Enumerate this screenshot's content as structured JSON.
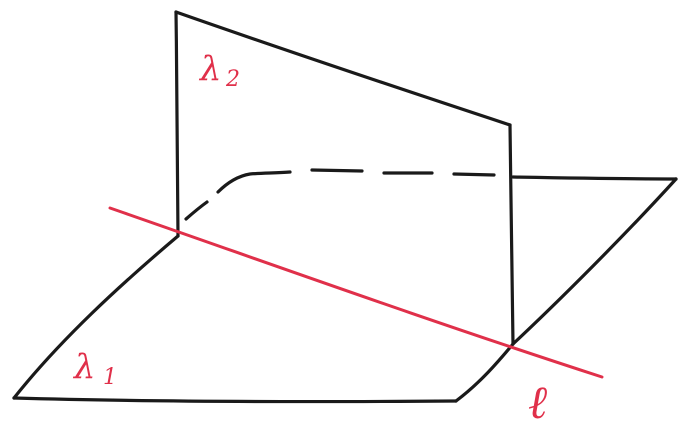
{
  "diagram": {
    "description_labels": {
      "plane_vertical": {
        "main": "λ",
        "sub": "2"
      },
      "plane_horizontal": {
        "main": "λ",
        "sub": "1"
      },
      "line": "ℓ"
    },
    "colors": {
      "ink": "#1a1a1a",
      "accent": "#e0304a",
      "background": "#ffffff"
    }
  }
}
